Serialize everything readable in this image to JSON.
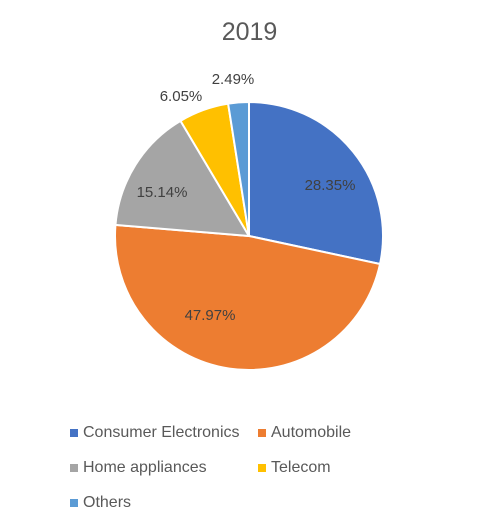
{
  "chart_data": {
    "type": "pie",
    "title": "2019",
    "slices": [
      {
        "label": "Consumer Electronics",
        "value": 28.35,
        "value_label": "28.35%",
        "color": "#4472C4"
      },
      {
        "label": "Automobile",
        "value": 47.97,
        "value_label": "47.97%",
        "color": "#ED7D31"
      },
      {
        "label": "Home appliances",
        "value": 15.14,
        "value_label": "15.14%",
        "color": "#A5A5A5"
      },
      {
        "label": "Telecom",
        "value": 6.05,
        "value_label": "6.05%",
        "color": "#FFC000"
      },
      {
        "label": "Others",
        "value": 2.49,
        "value_label": "2.49%",
        "color": "#5B9BD5"
      }
    ],
    "legend_position": "bottom",
    "start_angle": "12 o'clock",
    "direction": "clockwise"
  }
}
